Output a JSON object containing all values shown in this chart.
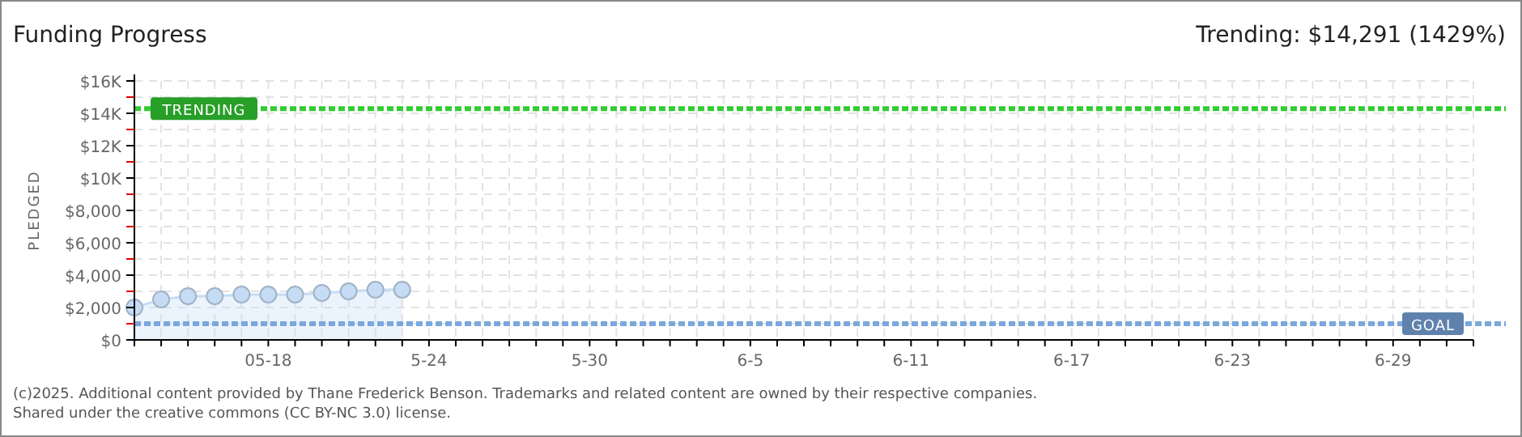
{
  "chart_data": {
    "type": "area",
    "title": "Funding Progress",
    "subtitle": "Trending: $14,291 (1429%)",
    "ylabel": "PLEDGED",
    "x": [
      "2025-05-13",
      "2025-05-14",
      "2025-05-15",
      "2025-05-16",
      "2025-05-17",
      "2025-05-18",
      "2025-05-19",
      "2025-05-20",
      "2025-05-21",
      "2025-05-22",
      "2025-05-23"
    ],
    "series": [
      {
        "color": "#c6dcf5",
        "values": [
          2000,
          2500,
          2700,
          2700,
          2800,
          2800,
          2800,
          2900,
          3000,
          3100,
          3100
        ]
      }
    ],
    "xlim": [
      "2025-05-13",
      "2025-07-02"
    ],
    "xticks": [
      {
        "value": "2025-05-13",
        "label": null
      },
      {
        "value": "2025-05-14",
        "label": null
      },
      {
        "value": "2025-05-15",
        "label": null
      },
      {
        "value": "2025-05-16",
        "label": null
      },
      {
        "value": "2025-05-17",
        "label": null
      },
      {
        "value": "2025-05-18",
        "label": "05-18"
      },
      {
        "value": "2025-05-19",
        "label": null
      },
      {
        "value": "2025-05-20",
        "label": null
      },
      {
        "value": "2025-05-21",
        "label": null
      },
      {
        "value": "2025-05-22",
        "label": null
      },
      {
        "value": "2025-05-23",
        "label": null
      },
      {
        "value": "2025-05-24",
        "label": "5-24"
      },
      {
        "value": "2025-05-25",
        "label": null
      },
      {
        "value": "2025-05-26",
        "label": null
      },
      {
        "value": "2025-05-27",
        "label": null
      },
      {
        "value": "2025-05-28",
        "label": null
      },
      {
        "value": "2025-05-29",
        "label": null
      },
      {
        "value": "2025-05-30",
        "label": "5-30"
      },
      {
        "value": "2025-05-31",
        "label": null
      },
      {
        "value": "2025-06-01",
        "label": null
      },
      {
        "value": "2025-06-02",
        "label": null
      },
      {
        "value": "2025-06-03",
        "label": null
      },
      {
        "value": "2025-06-04",
        "label": null
      },
      {
        "value": "2025-06-05",
        "label": "6-5"
      },
      {
        "value": "2025-06-06",
        "label": null
      },
      {
        "value": "2025-06-07",
        "label": null
      },
      {
        "value": "2025-06-08",
        "label": null
      },
      {
        "value": "2025-06-09",
        "label": null
      },
      {
        "value": "2025-06-10",
        "label": null
      },
      {
        "value": "2025-06-11",
        "label": "6-11"
      },
      {
        "value": "2025-06-12",
        "label": null
      },
      {
        "value": "2025-06-13",
        "label": null
      },
      {
        "value": "2025-06-14",
        "label": null
      },
      {
        "value": "2025-06-15",
        "label": null
      },
      {
        "value": "2025-06-16",
        "label": null
      },
      {
        "value": "2025-06-17",
        "label": "6-17"
      },
      {
        "value": "2025-06-18",
        "label": null
      },
      {
        "value": "2025-06-19",
        "label": null
      },
      {
        "value": "2025-06-20",
        "label": null
      },
      {
        "value": "2025-06-21",
        "label": null
      },
      {
        "value": "2025-06-22",
        "label": null
      },
      {
        "value": "2025-06-23",
        "label": "6-23"
      },
      {
        "value": "2025-06-24",
        "label": null
      },
      {
        "value": "2025-06-25",
        "label": null
      },
      {
        "value": "2025-06-26",
        "label": null
      },
      {
        "value": "2025-06-27",
        "label": null
      },
      {
        "value": "2025-06-28",
        "label": null
      },
      {
        "value": "2025-06-29",
        "label": "6-29"
      },
      {
        "value": "2025-06-30",
        "label": null
      },
      {
        "value": "2025-07-01",
        "label": null
      },
      {
        "value": "2025-07-02",
        "label": null
      }
    ],
    "ylim": [
      0,
      16000
    ],
    "yticks": [
      {
        "value": 0,
        "label": "$0"
      },
      {
        "value": 1000,
        "label": null
      },
      {
        "value": 2000,
        "label": "$2,000"
      },
      {
        "value": 3000,
        "label": null
      },
      {
        "value": 4000,
        "label": "$4,000"
      },
      {
        "value": 5000,
        "label": null
      },
      {
        "value": 6000,
        "label": "$6,000"
      },
      {
        "value": 7000,
        "label": null
      },
      {
        "value": 8000,
        "label": "$8,000"
      },
      {
        "value": 9000,
        "label": null
      },
      {
        "value": 10000,
        "label": "$10K"
      },
      {
        "value": 11000,
        "label": null
      },
      {
        "value": 12000,
        "label": "$12K"
      },
      {
        "value": 13000,
        "label": null
      },
      {
        "value": 14000,
        "label": "$14K"
      },
      {
        "value": 15000,
        "label": null
      },
      {
        "value": 16000,
        "label": "$16K"
      }
    ],
    "ref_lines": [
      {
        "axis": "y",
        "value": 14291,
        "label": "TRENDING",
        "color": "#33cc33",
        "line_style": "dashed"
      },
      {
        "axis": "y",
        "value": 1000,
        "label": "GOAL",
        "color": "#7aa7dd",
        "line_style": "dashed"
      }
    ],
    "annotations": [
      "(c)2025. Additional content provided by Thane Frederick Benson. Trademarks and related content are owned by their respective companies.",
      "Shared under the creative commons (CC BY-NC 3.0) license."
    ],
    "grid": true,
    "marker": "circle"
  }
}
